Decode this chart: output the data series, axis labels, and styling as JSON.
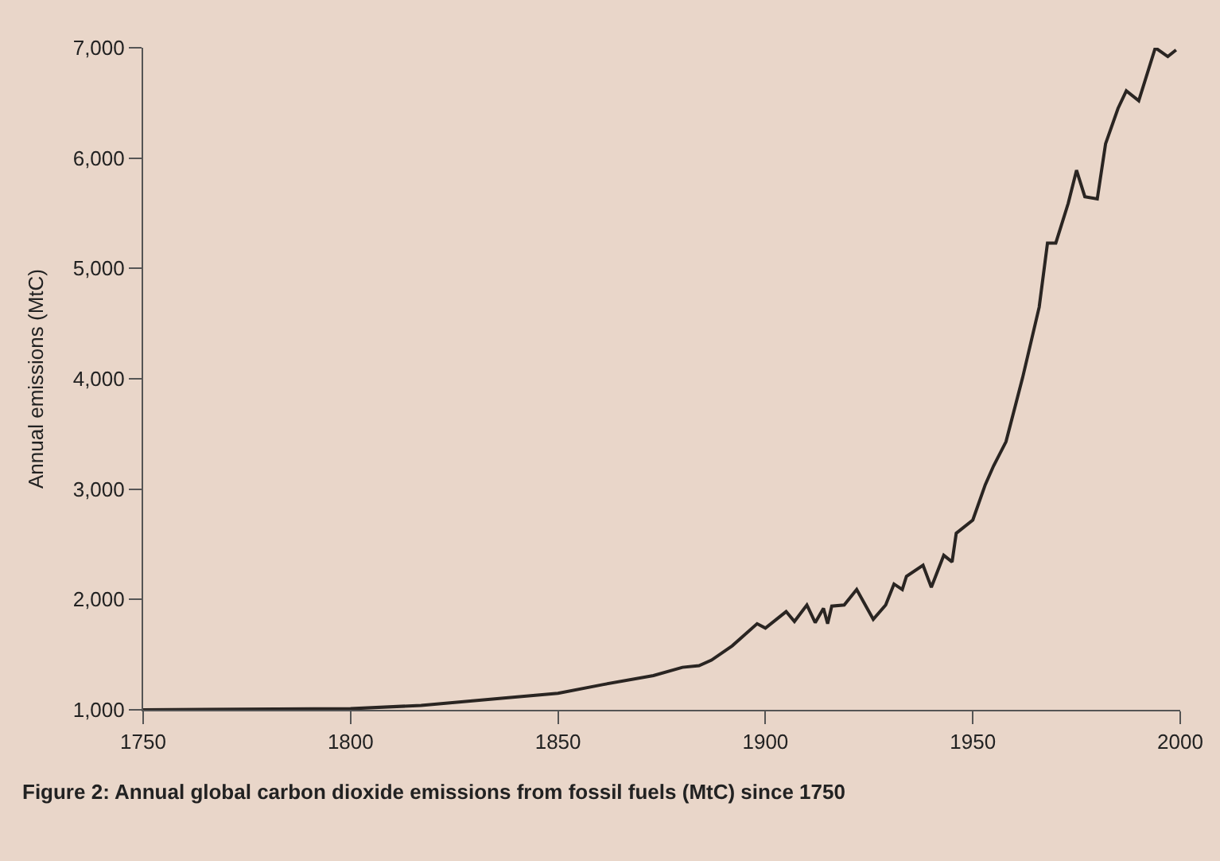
{
  "chart_data": {
    "type": "line",
    "xlabel": null,
    "ylabel": "Annual emissions (MtC)",
    "annotations": [
      "Figure 2: Annual global carbon dioxide emissions from fossil fuels (MtC) since 1750"
    ],
    "x": [
      1750,
      1800,
      1817,
      1838,
      1850,
      1861,
      1873,
      1880,
      1884,
      1887,
      1892,
      1898,
      1900,
      1905,
      1907,
      1910,
      1912,
      1914,
      1915,
      1916,
      1919,
      1922,
      1926,
      1929,
      1931,
      1933,
      1934,
      1938,
      1940,
      1943,
      1945,
      1946,
      1950,
      1953,
      1955,
      1958,
      1962,
      1966,
      1968,
      1970,
      1973,
      1975,
      1977,
      1980,
      1982,
      1985,
      1987,
      1990,
      1994,
      1997,
      1999
    ],
    "series": [
      {
        "color": "#2a2522",
        "values": [
          1000,
          1010,
          1040,
          1110,
          1150,
          1230,
          1310,
          1385,
          1400,
          1450,
          1580,
          1780,
          1740,
          1890,
          1800,
          1950,
          1790,
          1920,
          1780,
          1940,
          1950,
          2090,
          1820,
          1950,
          2140,
          2090,
          2210,
          2310,
          2110,
          2400,
          2340,
          2600,
          2720,
          3040,
          3210,
          3430,
          4010,
          4650,
          5230,
          5230,
          5590,
          5890,
          5650,
          5630,
          6130,
          6450,
          6610,
          6520,
          7000,
          6920,
          6980
        ]
      }
    ],
    "xlim": [
      1750,
      2000
    ],
    "xticks": [
      1750,
      1800,
      1850,
      1900,
      1950,
      2000
    ],
    "ylim": [
      1000,
      7000
    ],
    "yticks": [
      {
        "value": 1000,
        "label": "1,000"
      },
      {
        "value": 2000,
        "label": "2,000"
      },
      {
        "value": 3000,
        "label": "3,000"
      },
      {
        "value": 4000,
        "label": "4,000"
      },
      {
        "value": 5000,
        "label": "5,000"
      },
      {
        "value": 6000,
        "label": "6,000"
      },
      {
        "value": 7000,
        "label": "7,000"
      }
    ],
    "grid": false,
    "legend": false,
    "marker": "none",
    "line_style": "solid"
  }
}
